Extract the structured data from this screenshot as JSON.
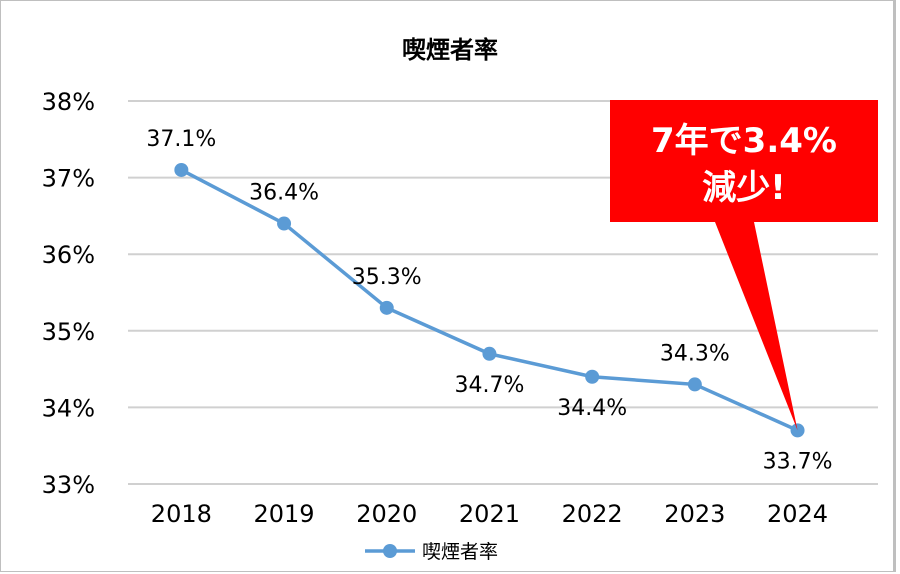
{
  "chart_data": {
    "type": "line",
    "title": "喫煙者率",
    "categories": [
      "2018",
      "2019",
      "2020",
      "2021",
      "2022",
      "2023",
      "2024"
    ],
    "series": [
      {
        "name": "喫煙者率",
        "values": [
          37.1,
          36.4,
          35.3,
          34.7,
          34.4,
          34.3,
          33.7
        ],
        "color": "#5b9bd5"
      }
    ],
    "data_labels": [
      "37.1%",
      "36.4%",
      "35.3%",
      "34.7%",
      "34.4%",
      "34.3%",
      "33.7%"
    ],
    "ylim": [
      33,
      38
    ],
    "yticks": [
      "33%",
      "34%",
      "35%",
      "36%",
      "37%",
      "38%"
    ],
    "grid": true,
    "legend": "bottom",
    "annotation": {
      "lines": [
        "7年で3.4%",
        "減少!"
      ],
      "color": "#ff0000",
      "target": "2024"
    }
  }
}
